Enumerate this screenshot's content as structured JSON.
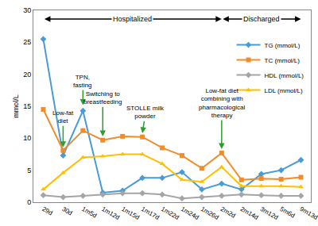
{
  "chart_data": {
    "type": "line",
    "y_label": "mmol/L",
    "categories": [
      "29d",
      "30d",
      "1m5d",
      "1m12d",
      "1m15d",
      "1m17d",
      "1m22d",
      "1m24d",
      "1m26d",
      "2m2d",
      "2m14d",
      "3m12d",
      "5m6d",
      "9m13d"
    ],
    "series": [
      {
        "name": "TG (mmol/L)",
        "color": "#4a9bd5",
        "marker": "diamond",
        "values": [
          25.5,
          7.3,
          14.3,
          1.5,
          1.8,
          3.8,
          3.8,
          4.7,
          2.0,
          2.9,
          2.0,
          4.4,
          5.0,
          6.6
        ]
      },
      {
        "name": "TC (mmol/L)",
        "color": "#f28c28",
        "marker": "square",
        "values": [
          14.5,
          8.1,
          11.2,
          9.7,
          10.3,
          10.2,
          8.5,
          7.3,
          5.3,
          7.7,
          3.5,
          3.7,
          3.6,
          3.9
        ]
      },
      {
        "name": "HDL (mmol/L)",
        "color": "#a5a5a5",
        "marker": "diamond",
        "values": [
          1.1,
          0.8,
          1.0,
          1.2,
          1.4,
          1.4,
          1.2,
          0.6,
          0.8,
          1.0,
          1.2,
          1.1,
          1.0,
          1.0
        ]
      },
      {
        "name": "LDL (mmol/L)",
        "color": "#ffc000",
        "marker": "triangle-up",
        "values": [
          2.0,
          4.6,
          7.0,
          7.2,
          7.5,
          7.5,
          6.0,
          3.5,
          3.2,
          5.5,
          2.5,
          2.5,
          2.5,
          2.4
        ]
      }
    ],
    "ylim": [
      0,
      30
    ],
    "yticks": [
      0,
      5,
      10,
      15,
      20,
      25,
      30
    ],
    "grid": false,
    "legend": "upper right",
    "periods": [
      {
        "text": "Hospitalized",
        "from": "29d",
        "to": "2m2d"
      },
      {
        "text": "Discharged",
        "from": "2m2d",
        "to": "9m13d"
      }
    ],
    "annotations": [
      {
        "text": "Low-fat\ndiet",
        "x": "30d",
        "y": 8.6,
        "color": "#2ca02c"
      },
      {
        "text": "TPN,\nfasting",
        "x": "1m5d",
        "y": 15.2,
        "color": "#2ca02c"
      },
      {
        "text": "Switching to\nbreastfeeding",
        "x": "1m12d",
        "y": 10.3,
        "color": "#2ca02c"
      },
      {
        "text": "STOLLE milk\npowder",
        "x": "1m17d",
        "y": 10.8,
        "color": "#2ca02c"
      },
      {
        "text": "Low-fat diet\ncombining with\npharmacological\ntherapy",
        "x": "2m2d",
        "y": 8.3,
        "color": "#2ca02c"
      }
    ]
  }
}
